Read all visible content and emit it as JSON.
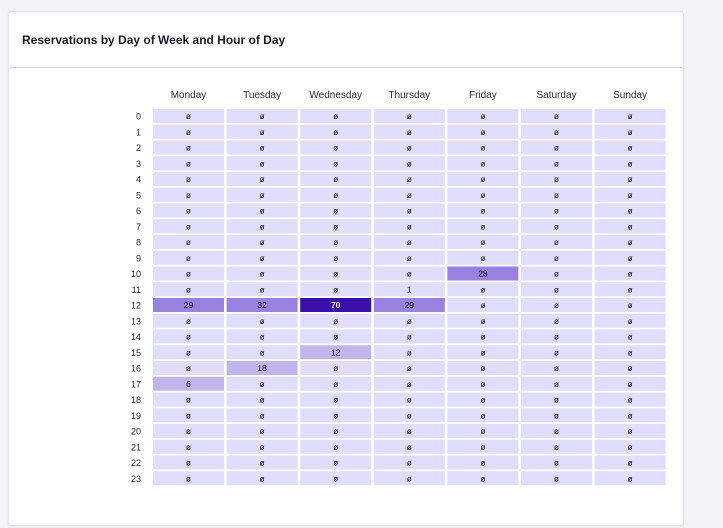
{
  "card": {
    "title": "Reservations by Day of Week and Hour of Day"
  },
  "empty_symbol": "ø",
  "colors": {
    "empty": "#e0ddff",
    "low": "#c2b5ee",
    "mid": "#9881df",
    "high": "#3a0ea8"
  },
  "chart_data": {
    "type": "heatmap",
    "title": "Reservations by Day of Week and Hour of Day",
    "x": [
      "Monday",
      "Tuesday",
      "Wednesday",
      "Thursday",
      "Friday",
      "Saturday",
      "Sunday"
    ],
    "y": [
      "0",
      "1",
      "2",
      "3",
      "4",
      "5",
      "6",
      "7",
      "8",
      "9",
      "10",
      "11",
      "12",
      "13",
      "14",
      "15",
      "16",
      "17",
      "18",
      "19",
      "20",
      "21",
      "22",
      "23"
    ],
    "values": [
      [
        null,
        null,
        null,
        null,
        null,
        null,
        null
      ],
      [
        null,
        null,
        null,
        null,
        null,
        null,
        null
      ],
      [
        null,
        null,
        null,
        null,
        null,
        null,
        null
      ],
      [
        null,
        null,
        null,
        null,
        null,
        null,
        null
      ],
      [
        null,
        null,
        null,
        null,
        null,
        null,
        null
      ],
      [
        null,
        null,
        null,
        null,
        null,
        null,
        null
      ],
      [
        null,
        null,
        null,
        null,
        null,
        null,
        null
      ],
      [
        null,
        null,
        null,
        null,
        null,
        null,
        null
      ],
      [
        null,
        null,
        null,
        null,
        null,
        null,
        null
      ],
      [
        null,
        null,
        null,
        null,
        null,
        null,
        null
      ],
      [
        null,
        null,
        null,
        null,
        28,
        null,
        null
      ],
      [
        null,
        null,
        null,
        1,
        null,
        null,
        null
      ],
      [
        29,
        32,
        70,
        29,
        null,
        null,
        null
      ],
      [
        null,
        null,
        null,
        null,
        null,
        null,
        null
      ],
      [
        null,
        null,
        null,
        null,
        null,
        null,
        null
      ],
      [
        null,
        null,
        12,
        null,
        null,
        null,
        null
      ],
      [
        null,
        18,
        null,
        null,
        null,
        null,
        null
      ],
      [
        6,
        null,
        null,
        null,
        null,
        null,
        null
      ],
      [
        null,
        null,
        null,
        null,
        null,
        null,
        null
      ],
      [
        null,
        null,
        null,
        null,
        null,
        null,
        null
      ],
      [
        null,
        null,
        null,
        null,
        null,
        null,
        null
      ],
      [
        null,
        null,
        null,
        null,
        null,
        null,
        null
      ],
      [
        null,
        null,
        null,
        null,
        null,
        null,
        null
      ],
      [
        null,
        null,
        null,
        null,
        null,
        null,
        null
      ]
    ]
  }
}
